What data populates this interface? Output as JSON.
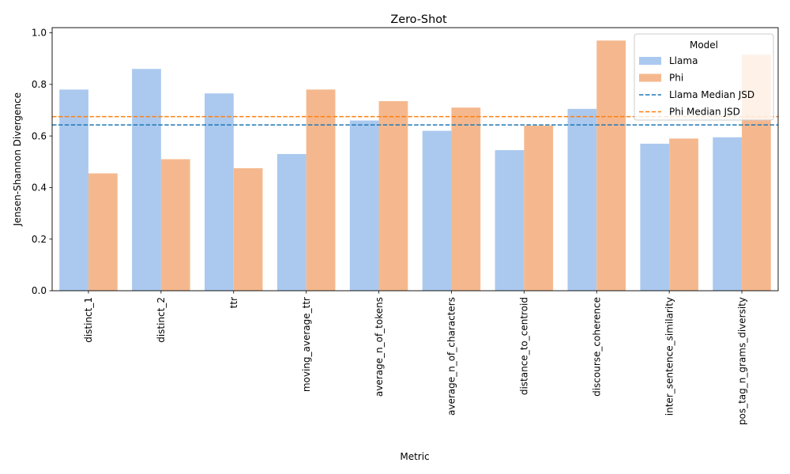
{
  "chart_data": {
    "type": "bar",
    "title": "Zero-Shot",
    "xlabel": "Metric",
    "ylabel": "Jensen-Shannon Divergence",
    "ylim": [
      0,
      1.02
    ],
    "yticks": [
      "0.0",
      "0.2",
      "0.4",
      "0.6",
      "0.8",
      "1.0"
    ],
    "categories": [
      "distinct_1",
      "distinct_2",
      "ttr",
      "moving_average_ttr",
      "average_n_of_tokens",
      "average_n_of_characters",
      "distance_to_centroid",
      "discourse_coherence",
      "inter_sentence_similarity",
      "pos_tag_n_grams_diversity"
    ],
    "series": [
      {
        "name": "Llama",
        "color": "#abc9ef",
        "values": [
          0.78,
          0.86,
          0.765,
          0.53,
          0.66,
          0.62,
          0.545,
          0.705,
          0.57,
          0.595
        ]
      },
      {
        "name": "Phi",
        "color": "#f5b88e",
        "values": [
          0.455,
          0.51,
          0.475,
          0.78,
          0.735,
          0.71,
          0.64,
          0.97,
          0.59,
          0.915
        ]
      }
    ],
    "reference_lines": [
      {
        "name": "Llama Median JSD",
        "value": 0.643,
        "color": "#1f77b4",
        "style": "dashed"
      },
      {
        "name": "Phi Median JSD",
        "value": 0.675,
        "color": "#ff7f0e",
        "style": "dashed"
      }
    ],
    "legend": {
      "title": "Model",
      "placement": "top-right"
    },
    "grid": false
  }
}
